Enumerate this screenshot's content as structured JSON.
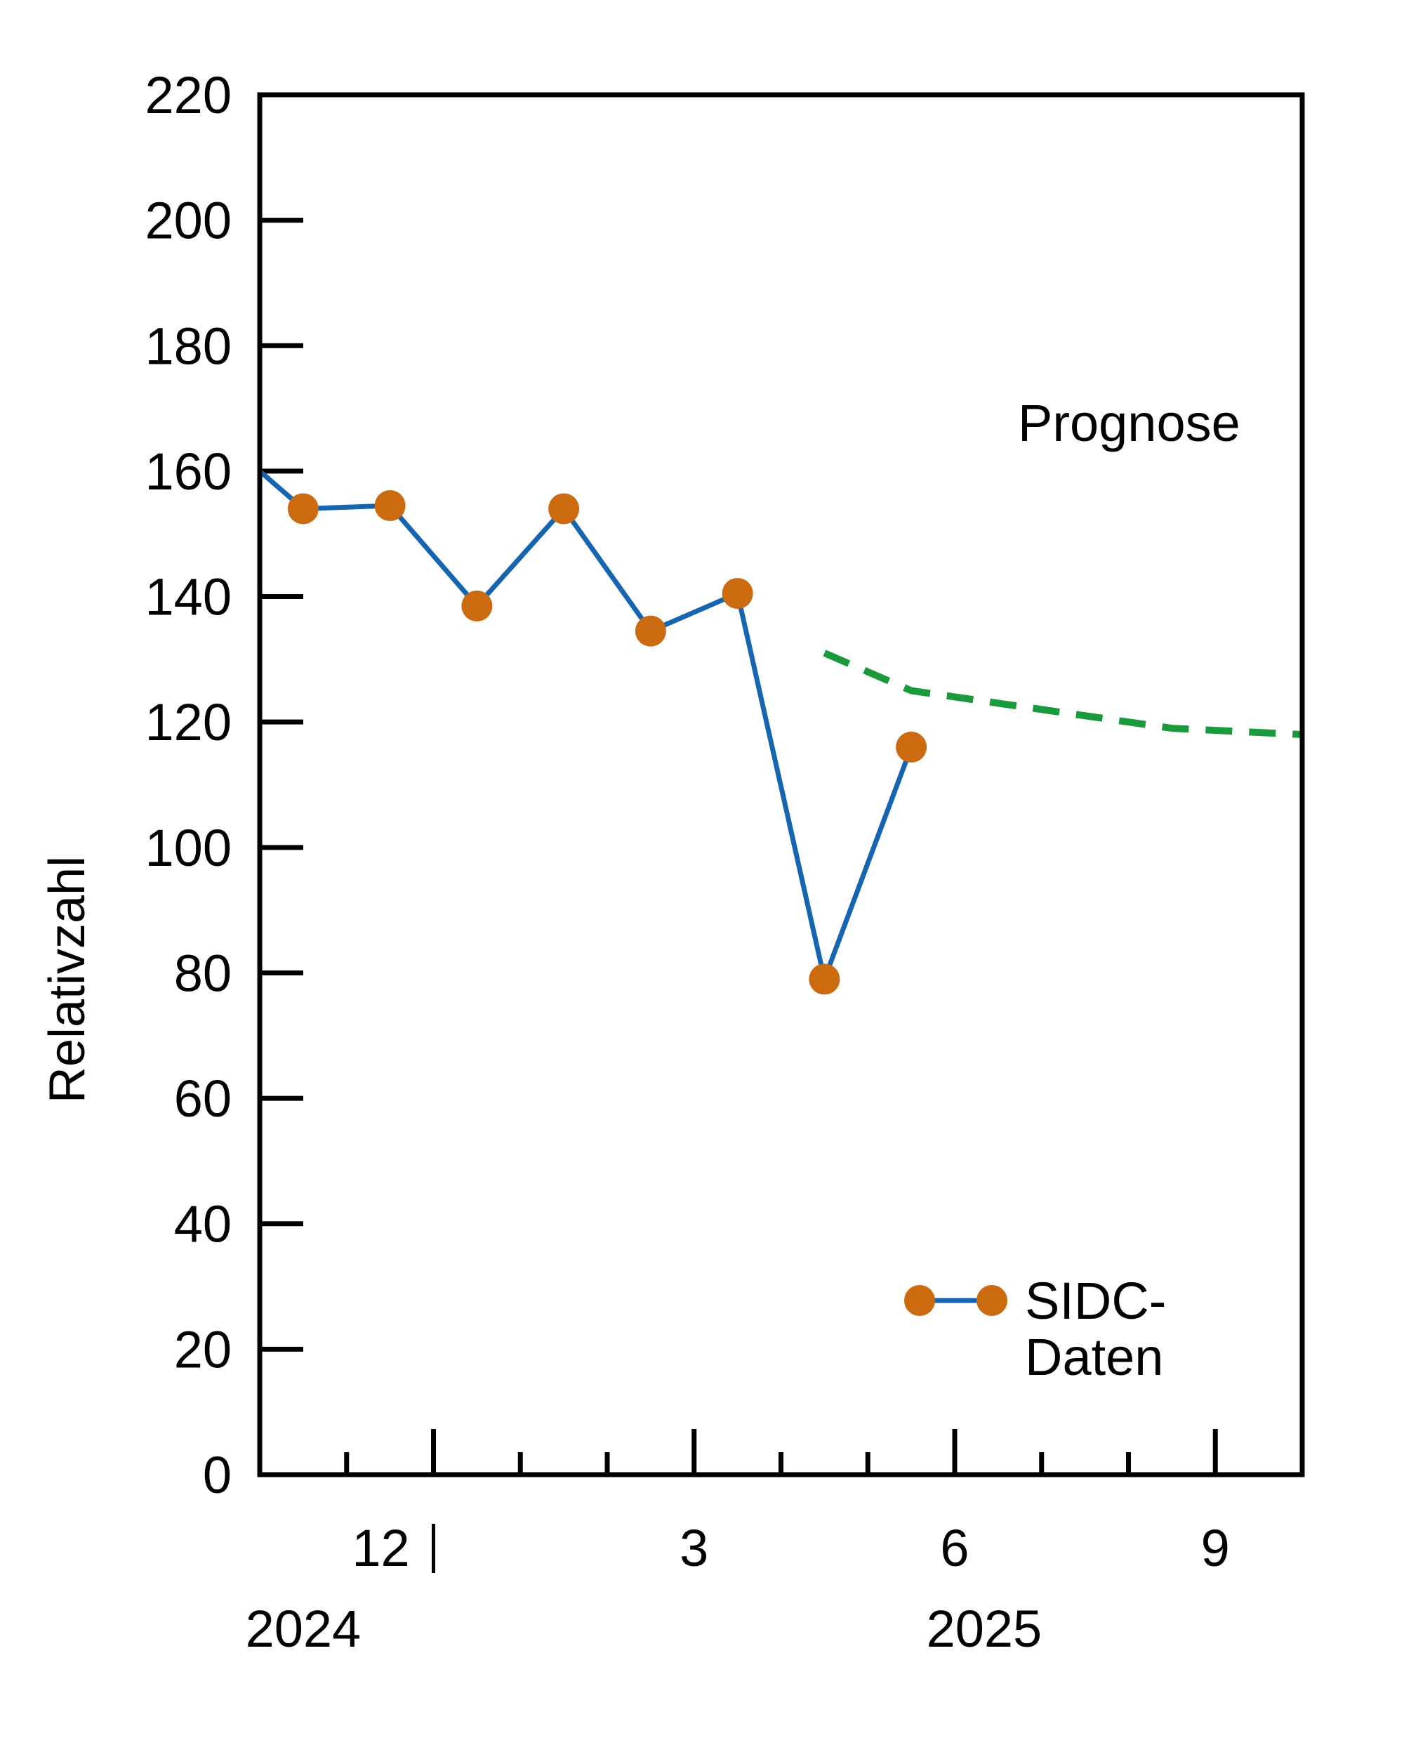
{
  "chart_data": {
    "type": "line",
    "title": "",
    "xlabel": "",
    "ylabel": "Relativzahl",
    "ylim": [
      0,
      220
    ],
    "yticks": [
      0,
      20,
      40,
      60,
      80,
      100,
      120,
      140,
      160,
      180,
      200,
      220
    ],
    "xlim": [
      0,
      12
    ],
    "x_month_labels": [
      {
        "x": 2,
        "label": "12"
      },
      {
        "x": 5,
        "label": "3"
      },
      {
        "x": 8,
        "label": "6"
      },
      {
        "x": 11,
        "label": "9"
      }
    ],
    "year_labels": [
      {
        "x": 0.5,
        "label": "2024"
      },
      {
        "x": 8.5,
        "label": "2025"
      }
    ],
    "year_divider_x": 2,
    "series": [
      {
        "name": "SIDC-Daten",
        "color": "#1565b0",
        "marker_color": "#cc6a10",
        "x": [
          0,
          0.5,
          1.5,
          2.5,
          3.5,
          4.5,
          5.5,
          6.5,
          7.5
        ],
        "values": [
          160,
          154,
          154.5,
          138.5,
          154,
          134.5,
          140.5,
          79,
          116
        ],
        "markers_from_index": 1
      },
      {
        "name": "Prognose",
        "color": "#1a9a3a",
        "dashed": true,
        "x": [
          6.5,
          7.5,
          8.5,
          9.5,
          10.5,
          12
        ],
        "values": [
          131,
          125,
          123,
          121,
          119,
          118
        ]
      }
    ],
    "annotations": [
      "Prognose"
    ],
    "legend": {
      "position": "bottom-right",
      "label_line1": "SIDC-",
      "label_line2": "Daten"
    }
  }
}
